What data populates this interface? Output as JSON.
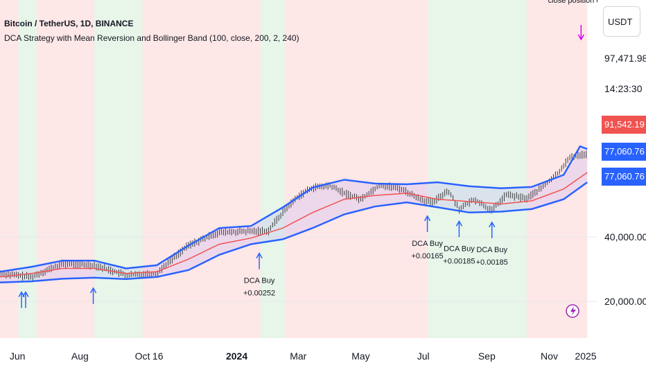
{
  "header": {
    "symbol_line": "Bitcoin / TetherUS, 1D, BINANCE",
    "strategy_line": "DCA Strategy with Mean Reversion and Bollinger Band (100, close, 200, 2, 240)"
  },
  "price_scale": {
    "currency": "USDT",
    "last_price": "97,471.98",
    "countdown": "14:23:30",
    "tags": [
      {
        "text": "91,542.19",
        "color": "#f05350"
      },
      {
        "text": "77,060.76",
        "color": "#2962ff"
      },
      {
        "text": "77,060.76",
        "color": "#2962ff"
      }
    ]
  },
  "chart_data": {
    "type": "line",
    "title": "",
    "y_scale": "log",
    "y_ticks": [
      {
        "label": "20,000.00",
        "value": 20000
      },
      {
        "label": "40,000.00",
        "value": 40000
      }
    ],
    "x_ticks": [
      "Jun",
      "Aug",
      "Oct",
      "16",
      "2024",
      "Mar",
      "May",
      "Jul",
      "Sep",
      "Nov",
      "2025"
    ],
    "x_dates": [
      "2023-06-01",
      "2023-08-01",
      "2023-10-01",
      "2023-10-16",
      "2024-01-01",
      "2024-03-01",
      "2024-05-01",
      "2024-07-01",
      "2024-09-01",
      "2024-11-01",
      "2025-01-01"
    ],
    "series": [
      {
        "name": "",
        "role": "price",
        "color": "#3a3a3a",
        "x": [
          "2023-05-15",
          "2023-06-15",
          "2023-07-15",
          "2023-08-15",
          "2023-09-15",
          "2023-10-15",
          "2023-11-15",
          "2023-12-15",
          "2024-01-15",
          "2024-02-01",
          "2024-02-15",
          "2024-03-01",
          "2024-03-15",
          "2024-04-01",
          "2024-04-15",
          "2024-05-01",
          "2024-05-20",
          "2024-06-10",
          "2024-06-25",
          "2024-07-10",
          "2024-07-25",
          "2024-08-05",
          "2024-08-20",
          "2024-09-06",
          "2024-09-20",
          "2024-10-10",
          "2024-10-25",
          "2024-11-10",
          "2024-11-20",
          "2024-12-01",
          "2024-12-08"
        ],
        "values": [
          27000,
          26000,
          30000,
          29500,
          26500,
          27000,
          36500,
          42000,
          42500,
          42800,
          52000,
          62000,
          68000,
          69500,
          64000,
          60000,
          70000,
          67000,
          61000,
          57500,
          66000,
          54000,
          60000,
          53000,
          63000,
          60500,
          68000,
          80000,
          93000,
          97000,
          97471.98
        ]
      },
      {
        "name": "",
        "role": "basis",
        "color": "#f05350",
        "x": [
          "2023-05-15",
          "2023-06-15",
          "2023-07-15",
          "2023-08-15",
          "2023-09-15",
          "2023-10-15",
          "2023-11-15",
          "2023-12-15",
          "2024-01-15",
          "2024-02-15",
          "2024-03-15",
          "2024-04-15",
          "2024-05-15",
          "2024-06-15",
          "2024-07-15",
          "2024-08-15",
          "2024-09-15",
          "2024-10-15",
          "2024-11-15",
          "2024-12-08"
        ],
        "values": [
          26000,
          27000,
          28500,
          28500,
          27000,
          27500,
          31500,
          37000,
          39500,
          44000,
          52000,
          60000,
          62500,
          64000,
          60000,
          58500,
          57000,
          59000,
          67000,
          80000
        ]
      },
      {
        "name": "",
        "role": "upper_band",
        "color": "#2962ff",
        "x": [
          "2023-05-15",
          "2023-06-15",
          "2023-07-15",
          "2023-08-15",
          "2023-09-15",
          "2023-10-15",
          "2023-11-15",
          "2023-12-15",
          "2024-01-15",
          "2024-02-15",
          "2024-03-15",
          "2024-04-15",
          "2024-05-15",
          "2024-06-15",
          "2024-07-15",
          "2024-08-15",
          "2024-09-15",
          "2024-10-15",
          "2024-11-15",
          "2024-12-01",
          "2024-12-08"
        ],
        "values": [
          27500,
          29000,
          31000,
          31000,
          28500,
          29500,
          36500,
          44000,
          45000,
          55000,
          68000,
          74000,
          71000,
          70500,
          72000,
          69000,
          67500,
          68500,
          78000,
          106000,
          103000
        ]
      },
      {
        "name": "",
        "role": "lower_band",
        "color": "#2962ff",
        "x": [
          "2023-05-15",
          "2023-06-15",
          "2023-07-15",
          "2023-08-15",
          "2023-09-15",
          "2023-10-15",
          "2023-11-15",
          "2023-12-15",
          "2024-01-15",
          "2024-02-15",
          "2024-03-15",
          "2024-04-15",
          "2024-05-15",
          "2024-06-15",
          "2024-07-15",
          "2024-08-15",
          "2024-09-15",
          "2024-10-15",
          "2024-11-15",
          "2024-12-08"
        ],
        "values": [
          24500,
          24800,
          25500,
          25800,
          25400,
          26000,
          28000,
          33000,
          37000,
          39000,
          44000,
          51000,
          55500,
          58000,
          55000,
          52000,
          52500,
          54000,
          60000,
          72000
        ]
      }
    ],
    "background_zones": [
      {
        "start": "2023-05-15",
        "end": "2023-06-02",
        "color": "#fde7e7"
      },
      {
        "start": "2023-06-02",
        "end": "2023-06-20",
        "color": "#e8f5e9"
      },
      {
        "start": "2023-06-20",
        "end": "2023-08-15",
        "color": "#fde7e7"
      },
      {
        "start": "2023-08-15",
        "end": "2023-10-01",
        "color": "#e8f5e9"
      },
      {
        "start": "2023-10-01",
        "end": "2024-01-24",
        "color": "#fde7e7"
      },
      {
        "start": "2024-01-24",
        "end": "2024-02-17",
        "color": "#e8f5e9"
      },
      {
        "start": "2024-02-17",
        "end": "2024-07-05",
        "color": "#fde7e7"
      },
      {
        "start": "2024-07-05",
        "end": "2024-10-10",
        "color": "#e8f5e9"
      },
      {
        "start": "2024-10-10",
        "end": "2024-12-08",
        "color": "#fde7e7"
      }
    ],
    "markers": [
      {
        "x": "2023-06-05",
        "type": "buy",
        "label": "",
        "value": ""
      },
      {
        "x": "2023-06-09",
        "type": "buy",
        "label": "",
        "value": ""
      },
      {
        "x": "2023-08-14",
        "type": "buy",
        "label": "",
        "value": ""
      },
      {
        "x": "2024-01-23",
        "type": "buy",
        "label": "DCA Buy",
        "value": "+0.00252"
      },
      {
        "x": "2024-07-05",
        "type": "buy",
        "label": "DCA Buy",
        "value": "+0.00165"
      },
      {
        "x": "2024-08-05",
        "type": "buy",
        "label": "DCA Buy",
        "value": "+0.00185"
      },
      {
        "x": "2024-09-06",
        "type": "buy",
        "label": "DCA Buy",
        "value": "+0.00185"
      },
      {
        "x": "2024-12-02",
        "type": "close",
        "label": "close position order",
        "value": ""
      }
    ]
  },
  "colors": {
    "bull_zone": "#e8f5e9",
    "bear_zone": "#fde7e7",
    "band": "#2962ff",
    "basis": "#f05350",
    "marker_buy": "#2962ff",
    "marker_close": "#d500f9"
  }
}
